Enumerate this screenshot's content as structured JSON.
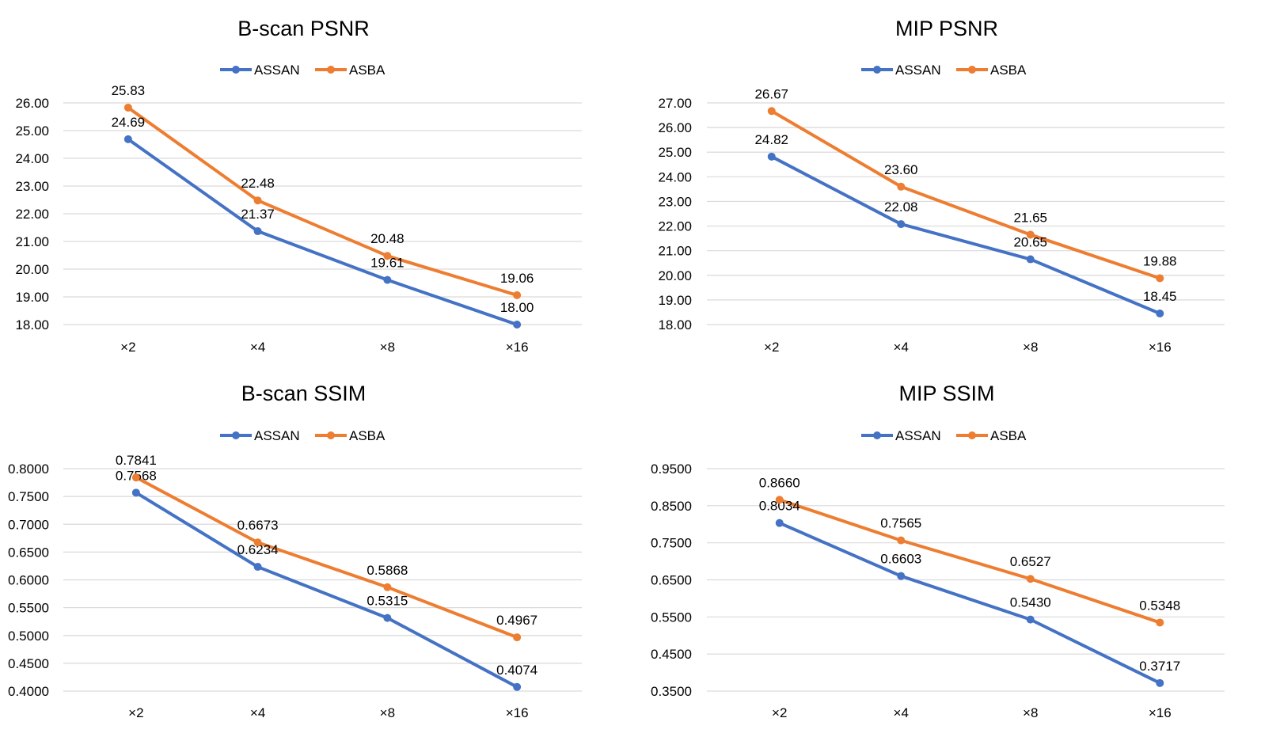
{
  "series_colors": {
    "ASSAN": "#4472C4",
    "ASBA": "#ED7D31"
  },
  "gridline_color": "#d9d9d9",
  "text_color": "#000000",
  "chart_data": [
    {
      "type": "line",
      "title": "B-scan PSNR",
      "categories": [
        "×2",
        "×4",
        "×8",
        "×16"
      ],
      "series": [
        {
          "name": "ASSAN",
          "values": [
            24.69,
            21.37,
            19.61,
            18.0
          ],
          "labels": [
            "24.69",
            "21.37",
            "19.61",
            "18.00"
          ]
        },
        {
          "name": "ASBA",
          "values": [
            25.83,
            22.48,
            20.48,
            19.06
          ],
          "labels": [
            "25.83",
            "22.48",
            "20.48",
            "19.06"
          ]
        }
      ],
      "ylim": [
        18,
        26
      ],
      "yticks": [
        "18.00",
        "19.00",
        "20.00",
        "21.00",
        "22.00",
        "23.00",
        "24.00",
        "25.00",
        "26.00"
      ],
      "legend": "top-center",
      "grid": true
    },
    {
      "type": "line",
      "title": "MIP PSNR",
      "categories": [
        "×2",
        "×4",
        "×8",
        "×16"
      ],
      "series": [
        {
          "name": "ASSAN",
          "values": [
            24.82,
            22.08,
            20.65,
            18.45
          ],
          "labels": [
            "24.82",
            "22.08",
            "20.65",
            "18.45"
          ]
        },
        {
          "name": "ASBA",
          "values": [
            26.67,
            23.6,
            21.65,
            19.88
          ],
          "labels": [
            "26.67",
            "23.60",
            "21.65",
            "19.88"
          ]
        }
      ],
      "ylim": [
        18,
        27
      ],
      "yticks": [
        "18.00",
        "19.00",
        "20.00",
        "21.00",
        "22.00",
        "23.00",
        "24.00",
        "25.00",
        "26.00",
        "27.00"
      ],
      "legend": "top-center",
      "grid": true
    },
    {
      "type": "line",
      "title": "B-scan SSIM",
      "categories": [
        "×2",
        "×4",
        "×8",
        "×16"
      ],
      "series": [
        {
          "name": "ASSAN",
          "values": [
            0.7568,
            0.6234,
            0.5315,
            0.4074
          ],
          "labels": [
            "0.7568",
            "0.6234",
            "0.5315",
            "0.4074"
          ]
        },
        {
          "name": "ASBA",
          "values": [
            0.7841,
            0.6673,
            0.5868,
            0.4967
          ],
          "labels": [
            "0.7841",
            "0.6673",
            "0.5868",
            "0.4967"
          ]
        }
      ],
      "ylim": [
        0.4,
        0.8
      ],
      "yticks": [
        "0.4000",
        "0.4500",
        "0.5000",
        "0.5500",
        "0.6000",
        "0.6500",
        "0.7000",
        "0.7500",
        "0.8000"
      ],
      "legend": "top-center",
      "grid": true
    },
    {
      "type": "line",
      "title": "MIP SSIM",
      "categories": [
        "×2",
        "×4",
        "×8",
        "×16"
      ],
      "series": [
        {
          "name": "ASSAN",
          "values": [
            0.8034,
            0.6603,
            0.543,
            0.3717
          ],
          "labels": [
            "0.8034",
            "0.6603",
            "0.5430",
            "0.3717"
          ]
        },
        {
          "name": "ASBA",
          "values": [
            0.866,
            0.7565,
            0.6527,
            0.5348
          ],
          "labels": [
            "0.8660",
            "0.7565",
            "0.6527",
            "0.5348"
          ]
        }
      ],
      "ylim": [
        0.35,
        0.95
      ],
      "yticks": [
        "0.3500",
        "0.4500",
        "0.5500",
        "0.6500",
        "0.7500",
        "0.8500",
        "0.9500"
      ],
      "legend": "top-center",
      "grid": true
    }
  ]
}
